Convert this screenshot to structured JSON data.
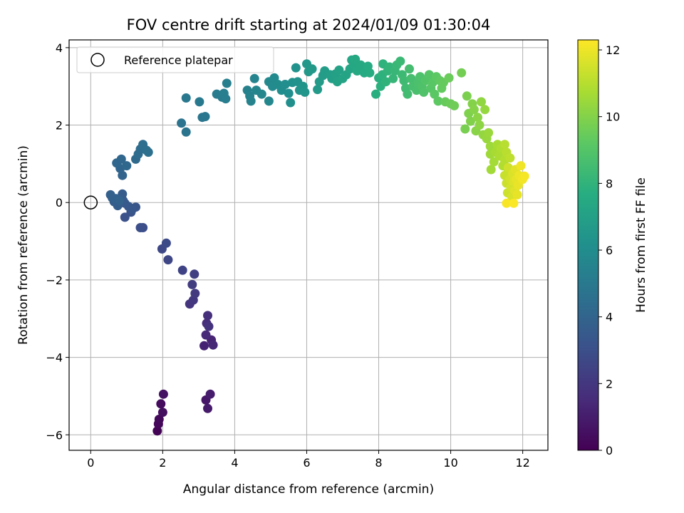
{
  "chart_data": {
    "type": "scatter",
    "title": "FOV centre drift starting at 2024/01/09 01:30:04",
    "xlabel": "Angular distance from reference (arcmin)",
    "ylabel": "Rotation from reference (arcmin)",
    "xlim": [
      -0.6,
      12.7
    ],
    "ylim": [
      -6.4,
      4.2
    ],
    "xticks": [
      0,
      2,
      4,
      6,
      8,
      10,
      12
    ],
    "yticks": [
      -6,
      -4,
      -2,
      0,
      2,
      4
    ],
    "xtick_labels": [
      "0",
      "2",
      "4",
      "6",
      "8",
      "10",
      "12"
    ],
    "ytick_labels": [
      "−6",
      "−4",
      "−2",
      "0",
      "2",
      "4"
    ],
    "grid": true,
    "legend": {
      "placement": "top-left",
      "entries": [
        "Reference platepar"
      ]
    },
    "reference_point": {
      "x": 0,
      "y": 0
    },
    "colorbar": {
      "label": "Hours from first FF file",
      "min": 0,
      "max": 12.3,
      "ticks": [
        0,
        2,
        4,
        6,
        8,
        10,
        12
      ],
      "tick_labels": [
        "0",
        "2",
        "4",
        "6",
        "8",
        "10",
        "12"
      ],
      "colormap": "viridis"
    },
    "points": [
      [
        1.85,
        -5.9,
        0.1
      ],
      [
        1.88,
        -5.72,
        0.2
      ],
      [
        1.9,
        -5.6,
        0.3
      ],
      [
        1.95,
        -5.2,
        0.4
      ],
      [
        2.0,
        -5.42,
        0.5
      ],
      [
        2.02,
        -4.95,
        0.6
      ],
      [
        3.2,
        -5.1,
        0.8
      ],
      [
        3.25,
        -5.32,
        0.9
      ],
      [
        3.32,
        -4.95,
        1.0
      ],
      [
        3.15,
        -3.7,
        1.2
      ],
      [
        3.35,
        -3.55,
        1.3
      ],
      [
        3.4,
        -3.68,
        1.4
      ],
      [
        3.2,
        -3.42,
        1.5
      ],
      [
        3.22,
        -3.12,
        1.6
      ],
      [
        3.25,
        -2.92,
        1.7
      ],
      [
        3.28,
        -3.2,
        1.8
      ],
      [
        2.75,
        -2.62,
        1.9
      ],
      [
        2.85,
        -2.52,
        2.0
      ],
      [
        2.9,
        -2.35,
        2.1
      ],
      [
        2.82,
        -2.12,
        2.2
      ],
      [
        2.88,
        -1.85,
        2.3
      ],
      [
        2.55,
        -1.75,
        2.5
      ],
      [
        2.15,
        -1.48,
        2.6
      ],
      [
        1.98,
        -1.2,
        2.7
      ],
      [
        2.1,
        -1.05,
        2.8
      ],
      [
        1.45,
        -0.65,
        2.95
      ],
      [
        1.38,
        -0.65,
        3.0
      ],
      [
        0.95,
        -0.38,
        3.1
      ],
      [
        1.12,
        -0.25,
        3.2
      ],
      [
        1.25,
        -0.12,
        3.3
      ],
      [
        1.15,
        -0.18,
        3.35
      ],
      [
        1.05,
        -0.1,
        3.4
      ],
      [
        0.95,
        -0.02,
        3.45
      ],
      [
        0.9,
        0.05,
        3.5
      ],
      [
        0.85,
        0.12,
        3.55
      ],
      [
        0.88,
        0.22,
        3.6
      ],
      [
        0.75,
        -0.08,
        3.65
      ],
      [
        0.65,
        0.02,
        3.7
      ],
      [
        0.6,
        0.12,
        3.75
      ],
      [
        0.55,
        0.2,
        3.8
      ],
      [
        0.7,
        0.1,
        3.85
      ],
      [
        0.8,
        0.05,
        3.9
      ],
      [
        0.88,
        0.7,
        4.0
      ],
      [
        0.82,
        0.88,
        4.05
      ],
      [
        0.72,
        1.02,
        4.1
      ],
      [
        0.85,
        1.12,
        4.15
      ],
      [
        1.0,
        0.95,
        4.2
      ],
      [
        1.25,
        1.12,
        4.3
      ],
      [
        1.32,
        1.25,
        4.35
      ],
      [
        1.38,
        1.38,
        4.4
      ],
      [
        1.45,
        1.5,
        4.45
      ],
      [
        1.55,
        1.35,
        4.5
      ],
      [
        1.6,
        1.3,
        4.55
      ],
      [
        2.52,
        2.05,
        4.7
      ],
      [
        2.65,
        1.82,
        4.75
      ],
      [
        3.1,
        2.2,
        4.8
      ],
      [
        3.18,
        2.22,
        4.85
      ],
      [
        2.65,
        2.7,
        4.95
      ],
      [
        3.02,
        2.6,
        5.0
      ],
      [
        3.5,
        2.8,
        5.1
      ],
      [
        3.65,
        2.72,
        5.15
      ],
      [
        3.75,
        2.68,
        5.2
      ],
      [
        3.7,
        2.82,
        5.25
      ],
      [
        3.78,
        3.08,
        5.3
      ],
      [
        4.35,
        2.9,
        5.4
      ],
      [
        4.42,
        2.75,
        5.45
      ],
      [
        4.45,
        2.62,
        5.5
      ],
      [
        4.55,
        3.2,
        5.55
      ],
      [
        4.6,
        2.9,
        5.6
      ],
      [
        4.75,
        2.8,
        5.65
      ],
      [
        4.95,
        2.62,
        5.7
      ],
      [
        4.95,
        3.12,
        5.8
      ],
      [
        5.05,
        3.0,
        5.85
      ],
      [
        5.1,
        3.22,
        5.9
      ],
      [
        5.2,
        3.05,
        5.95
      ],
      [
        5.3,
        2.9,
        6.0
      ],
      [
        5.4,
        3.05,
        6.05
      ],
      [
        5.5,
        2.82,
        6.1
      ],
      [
        5.55,
        2.58,
        6.15
      ],
      [
        5.6,
        3.1,
        6.2
      ],
      [
        5.7,
        3.48,
        6.25
      ],
      [
        5.75,
        3.12,
        6.3
      ],
      [
        5.8,
        2.9,
        6.35
      ],
      [
        5.9,
        3.0,
        6.4
      ],
      [
        5.95,
        2.85,
        6.45
      ],
      [
        6.0,
        3.58,
        6.55
      ],
      [
        6.05,
        3.38,
        6.6
      ],
      [
        6.15,
        3.45,
        6.65
      ],
      [
        6.3,
        2.92,
        6.7
      ],
      [
        6.35,
        3.12,
        6.75
      ],
      [
        6.45,
        3.28,
        6.8
      ],
      [
        6.5,
        3.4,
        6.85
      ],
      [
        6.65,
        3.3,
        6.9
      ],
      [
        6.7,
        3.2,
        6.95
      ],
      [
        6.8,
        3.32,
        7.0
      ],
      [
        6.85,
        3.12,
        7.05
      ],
      [
        6.9,
        3.42,
        7.1
      ],
      [
        7.0,
        3.2,
        7.15
      ],
      [
        7.1,
        3.3,
        7.2
      ],
      [
        7.2,
        3.45,
        7.25
      ],
      [
        7.25,
        3.68,
        7.3
      ],
      [
        7.3,
        3.58,
        7.35
      ],
      [
        7.35,
        3.7,
        7.4
      ],
      [
        7.4,
        3.4,
        7.45
      ],
      [
        7.5,
        3.55,
        7.5
      ],
      [
        7.6,
        3.35,
        7.55
      ],
      [
        7.7,
        3.52,
        7.6
      ],
      [
        7.75,
        3.35,
        7.65
      ],
      [
        7.92,
        2.8,
        7.75
      ],
      [
        8.0,
        3.22,
        7.8
      ],
      [
        8.05,
        3.0,
        7.85
      ],
      [
        8.1,
        3.3,
        7.9
      ],
      [
        8.12,
        3.58,
        7.95
      ],
      [
        8.2,
        3.12,
        8.0
      ],
      [
        8.25,
        3.4,
        8.05
      ],
      [
        8.3,
        3.5,
        8.1
      ],
      [
        8.4,
        3.2,
        8.15
      ],
      [
        8.45,
        3.4,
        8.2
      ],
      [
        8.5,
        3.55,
        8.25
      ],
      [
        8.6,
        3.65,
        8.3
      ],
      [
        8.65,
        3.3,
        8.35
      ],
      [
        8.7,
        3.15,
        8.4
      ],
      [
        8.75,
        2.95,
        8.45
      ],
      [
        8.8,
        2.8,
        8.5
      ],
      [
        8.85,
        3.45,
        8.55
      ],
      [
        8.9,
        3.2,
        8.6
      ],
      [
        8.95,
        3.0,
        8.65
      ],
      [
        9.05,
        2.9,
        8.7
      ],
      [
        9.1,
        3.1,
        8.75
      ],
      [
        9.15,
        3.25,
        8.8
      ],
      [
        9.2,
        3.0,
        8.85
      ],
      [
        9.25,
        2.85,
        8.9
      ],
      [
        9.3,
        3.15,
        8.95
      ],
      [
        9.4,
        3.3,
        9.0
      ],
      [
        9.45,
        2.95,
        9.05
      ],
      [
        9.5,
        3.1,
        9.1
      ],
      [
        9.55,
        2.8,
        9.15
      ],
      [
        9.6,
        3.25,
        9.2
      ],
      [
        9.65,
        2.62,
        9.25
      ],
      [
        9.7,
        3.15,
        9.3
      ],
      [
        9.75,
        2.95,
        9.35
      ],
      [
        9.8,
        3.1,
        9.4
      ],
      [
        9.85,
        2.6,
        9.45
      ],
      [
        9.95,
        3.22,
        9.5
      ],
      [
        10.0,
        2.55,
        9.55
      ],
      [
        10.1,
        2.5,
        9.6
      ],
      [
        10.3,
        3.35,
        9.7
      ],
      [
        10.4,
        1.9,
        9.8
      ],
      [
        10.45,
        2.75,
        9.85
      ],
      [
        10.5,
        2.3,
        9.9
      ],
      [
        10.55,
        2.1,
        9.95
      ],
      [
        10.6,
        2.55,
        10.0
      ],
      [
        10.65,
        2.4,
        10.05
      ],
      [
        10.7,
        1.85,
        10.1
      ],
      [
        10.75,
        2.2,
        10.15
      ],
      [
        10.8,
        2.0,
        10.2
      ],
      [
        10.85,
        2.6,
        10.25
      ],
      [
        10.9,
        1.75,
        10.3
      ],
      [
        10.95,
        2.4,
        10.35
      ],
      [
        11.0,
        1.65,
        10.4
      ],
      [
        11.05,
        1.8,
        10.45
      ],
      [
        11.1,
        1.45,
        10.5
      ],
      [
        11.1,
        1.25,
        10.55
      ],
      [
        11.12,
        0.85,
        10.6
      ],
      [
        11.2,
        1.05,
        10.65
      ],
      [
        11.25,
        1.3,
        10.7
      ],
      [
        11.3,
        1.5,
        10.75
      ],
      [
        11.35,
        1.2,
        10.8
      ],
      [
        11.4,
        1.4,
        10.85
      ],
      [
        11.45,
        0.95,
        10.9
      ],
      [
        11.5,
        1.1,
        10.95
      ],
      [
        11.5,
        1.5,
        11.0
      ],
      [
        11.55,
        1.3,
        11.05
      ],
      [
        11.6,
        0.85,
        11.1
      ],
      [
        11.65,
        1.15,
        11.15
      ],
      [
        11.5,
        0.7,
        11.3
      ],
      [
        11.55,
        0.5,
        11.35
      ],
      [
        11.58,
        0.25,
        11.4
      ],
      [
        11.6,
        0.9,
        11.45
      ],
      [
        11.65,
        0.6,
        11.5
      ],
      [
        11.68,
        0.4,
        11.55
      ],
      [
        11.7,
        0.15,
        11.6
      ],
      [
        11.72,
        0.75,
        11.65
      ],
      [
        11.75,
        0.55,
        11.7
      ],
      [
        11.78,
        0.3,
        11.75
      ],
      [
        11.8,
        0.85,
        11.8
      ],
      [
        11.82,
        0.6,
        11.85
      ],
      [
        11.85,
        0.2,
        11.9
      ],
      [
        11.88,
        0.45,
        11.95
      ],
      [
        11.9,
        0.7,
        12.0
      ],
      [
        11.95,
        0.95,
        12.05
      ],
      [
        12.0,
        0.6,
        12.1
      ],
      [
        12.05,
        0.68,
        12.15
      ],
      [
        11.55,
        -0.02,
        12.2
      ],
      [
        11.75,
        -0.02,
        12.25
      ]
    ]
  }
}
